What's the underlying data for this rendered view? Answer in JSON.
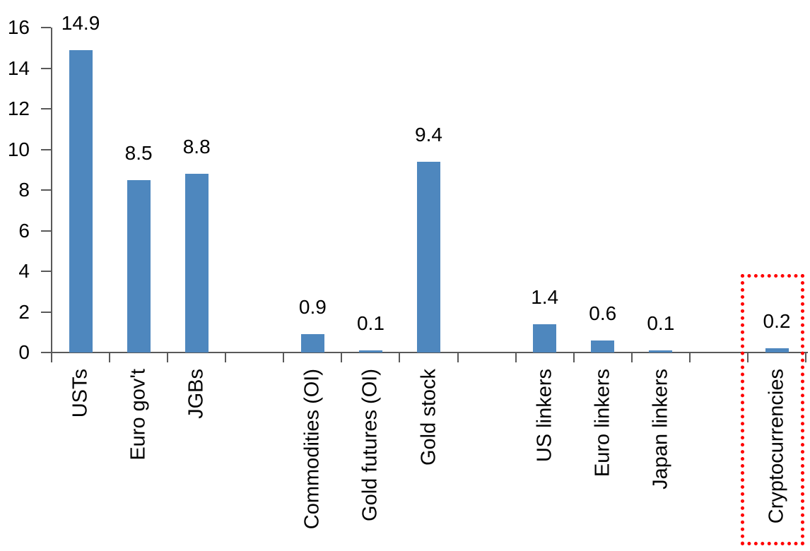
{
  "chart_data": {
    "type": "bar",
    "title": "",
    "categories": [
      "USTs",
      "Euro gov't",
      "JGBs",
      "Commodities (OI)",
      "Gold futures (OI)",
      "Gold stock",
      "US linkers",
      "Euro linkers",
      "Japan linkers",
      "Cryptocurrencies"
    ],
    "values": [
      14.9,
      8.5,
      8.8,
      0.9,
      0.1,
      9.4,
      1.4,
      0.6,
      0.1,
      0.2
    ],
    "data_labels": [
      "14.9",
      "8.5",
      "8.8",
      "0.9",
      "0.1",
      "9.4",
      "1.4",
      "0.6",
      "0.1",
      "0.2"
    ],
    "slots": [
      0,
      1,
      2,
      4,
      5,
      6,
      8,
      9,
      10,
      12
    ],
    "total_slots": 13,
    "xlabel": "",
    "ylabel": "",
    "ylim": [
      0,
      16
    ],
    "yticks": [
      0,
      2,
      4,
      6,
      8,
      10,
      12,
      14,
      16
    ],
    "grid": false,
    "legend": false,
    "bar_color": "#4E87BE",
    "axis_color": "#595959",
    "text_color": "#000000",
    "highlight": {
      "category": "Cryptocurrencies",
      "shape": "red-dotted-rectangle",
      "color": "#FF0000"
    }
  }
}
